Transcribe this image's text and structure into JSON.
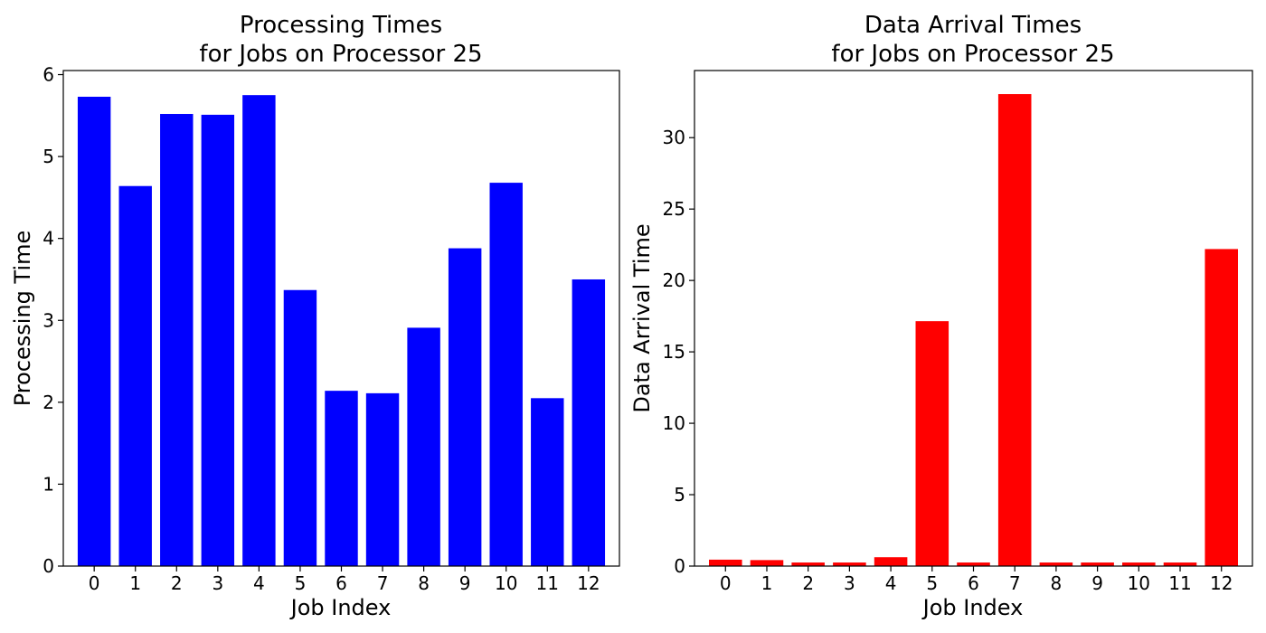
{
  "chart_data": [
    {
      "type": "bar",
      "title_line1": "Processing Times",
      "title_line2": "for Jobs on Processor 25",
      "xlabel": "Job Index",
      "ylabel": "Processing Time",
      "categories": [
        "0",
        "1",
        "2",
        "3",
        "4",
        "5",
        "6",
        "7",
        "8",
        "9",
        "10",
        "11",
        "12"
      ],
      "values": [
        5.73,
        4.64,
        5.52,
        5.51,
        5.75,
        3.37,
        2.14,
        2.11,
        2.91,
        3.88,
        4.68,
        2.05,
        3.5
      ],
      "ylim": [
        0,
        6.05
      ],
      "yticks": [
        "0",
        "1",
        "2",
        "3",
        "4",
        "5",
        "6"
      ],
      "color": "#0000ff",
      "grid": false
    },
    {
      "type": "bar",
      "title_line1": "Data Arrival Times",
      "title_line2": "for Jobs on Processor 25",
      "xlabel": "Job Index",
      "ylabel": "Data Arrival Time",
      "categories": [
        "0",
        "1",
        "2",
        "3",
        "4",
        "5",
        "6",
        "7",
        "8",
        "9",
        "10",
        "11",
        "12"
      ],
      "values": [
        0.45,
        0.42,
        0.25,
        0.25,
        0.62,
        17.15,
        0.25,
        33.05,
        0.25,
        0.25,
        0.25,
        0.25,
        22.2
      ],
      "ylim": [
        0,
        34.7
      ],
      "yticks": [
        "0",
        "5",
        "10",
        "15",
        "20",
        "25",
        "30"
      ],
      "color": "#ff0000",
      "grid": false
    }
  ]
}
